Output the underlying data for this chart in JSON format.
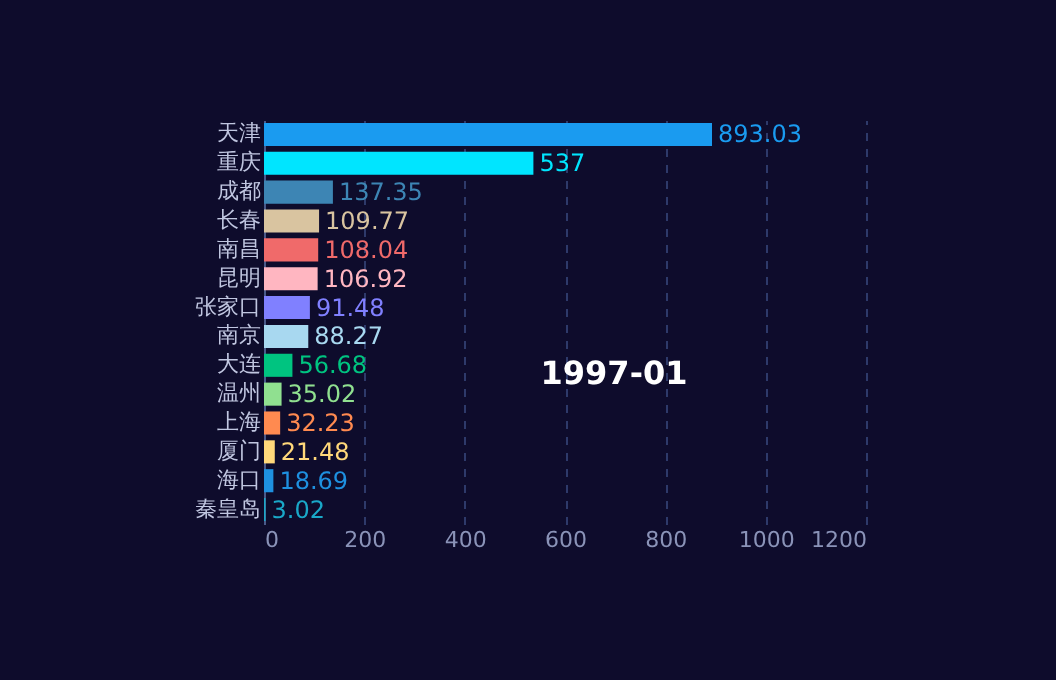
{
  "chart_data": {
    "type": "bar",
    "orientation": "horizontal",
    "data_labels": true,
    "grid": "x",
    "categories": [
      "天津",
      "重庆",
      "成都",
      "长春",
      "南昌",
      "昆明",
      "张家口",
      "南京",
      "大连",
      "温州",
      "上海",
      "厦门",
      "海口",
      "秦皇岛"
    ],
    "values": [
      893.03,
      537,
      137.35,
      109.77,
      108.04,
      106.92,
      91.48,
      88.27,
      56.68,
      35.02,
      32.23,
      21.48,
      18.69,
      3.02
    ],
    "colors": [
      "#1a9bf0",
      "#00e5ff",
      "#3d85b4",
      "#d9c4a0",
      "#f06a6a",
      "#ffb6c1",
      "#8080ff",
      "#a8d8f0",
      "#00c480",
      "#90e090",
      "#ff8a50",
      "#ffd87a",
      "#1e90e0",
      "#1aa8c8"
    ],
    "xlim": [
      0,
      1200
    ],
    "xticks": [
      0,
      200,
      400,
      600,
      800,
      1000,
      1200
    ],
    "annotations": [
      "1997-01"
    ]
  }
}
